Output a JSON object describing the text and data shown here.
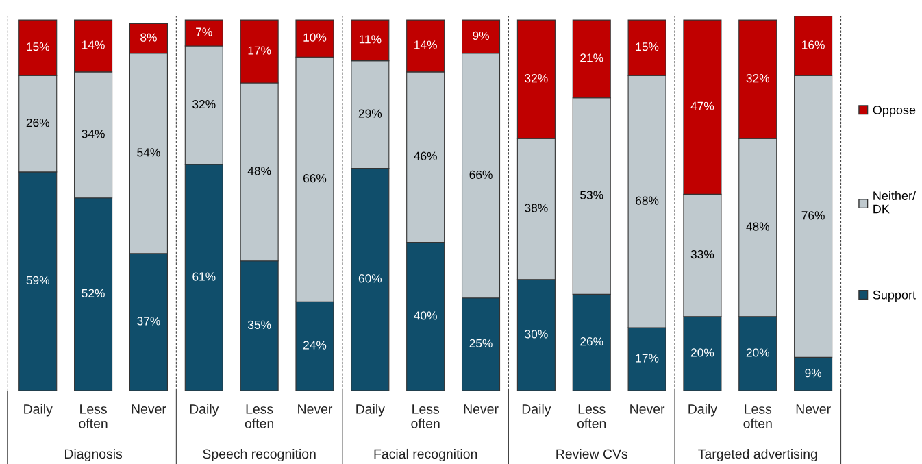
{
  "chart_data": {
    "type": "bar",
    "stacked": true,
    "grid": "x",
    "legend": "right",
    "categories": [
      "Daily",
      "Less\noften",
      "Never",
      "Daily",
      "Less\noften",
      "Never",
      "Daily",
      "Less\noften",
      "Never",
      "Daily",
      "Less\noften",
      "Never",
      "Daily",
      "Less\noften",
      "Never"
    ],
    "annotations": [
      "Diagnosis",
      "Speech recognition",
      "Facial recognition",
      "Review CVs",
      "Targeted advertising"
    ],
    "series": [
      {
        "name": "Support",
        "color": "#104e6b",
        "values": [
          59,
          52,
          37,
          61,
          35,
          24,
          60,
          40,
          25,
          30,
          26,
          17,
          20,
          20,
          9
        ],
        "value_labels": [
          "59%",
          "52%",
          "37%",
          "61%",
          "35%",
          "24%",
          "60%",
          "40%",
          "25%",
          "30%",
          "26%",
          "17%",
          "20%",
          "20%",
          "9%"
        ]
      },
      {
        "name": "Neither/\nDK",
        "color": "#bfc9ce",
        "values": [
          26,
          34,
          54,
          32,
          48,
          66,
          29,
          46,
          66,
          38,
          53,
          68,
          33,
          48,
          76
        ],
        "value_labels": [
          "26%",
          "34%",
          "54%",
          "32%",
          "48%",
          "66%",
          "29%",
          "46%",
          "66%",
          "38%",
          "53%",
          "68%",
          "33%",
          "48%",
          "76%"
        ]
      },
      {
        "name": "Oppose",
        "color": "#c00000",
        "values": [
          15,
          14,
          8,
          7,
          17,
          10,
          11,
          14,
          9,
          32,
          21,
          15,
          47,
          32,
          16
        ],
        "value_labels": [
          "15%",
          "14%",
          "8%",
          "7%",
          "17%",
          "10%",
          "11%",
          "14%",
          "9%",
          "32%",
          "21%",
          "15%",
          "47%",
          "32%",
          "16%"
        ]
      }
    ]
  }
}
